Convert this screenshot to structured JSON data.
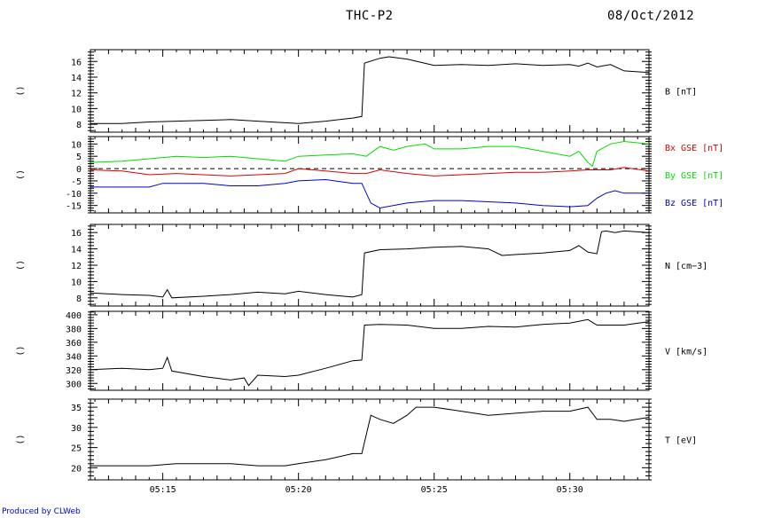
{
  "header": {
    "title": "THC-P2",
    "date": "08/Oct/2012"
  },
  "footer": {
    "credit": "Produced by CLWeb"
  },
  "colors": {
    "bx": "#dd0000",
    "by": "#00dd00",
    "bz": "#0000cc",
    "line": "#000000"
  },
  "chart_data": [
    {
      "type": "line",
      "id": "B",
      "left_label": "()",
      "ylim": [
        7,
        17.5
      ],
      "yticks": [
        8,
        10,
        12,
        14,
        16
      ],
      "xlim": [
        "05:12:20",
        "05:32:55"
      ],
      "series": [
        {
          "name": "B [nT]",
          "color": "#000000",
          "x": [
            "05:12:20",
            "05:13:30",
            "05:14:30",
            "05:15:30",
            "05:16:30",
            "05:17:30",
            "05:18:30",
            "05:19:30",
            "05:20:00",
            "05:21:00",
            "05:22:00",
            "05:22:20",
            "05:22:26",
            "05:23:00",
            "05:23:20",
            "05:24:00",
            "05:25:00",
            "05:26:00",
            "05:27:00",
            "05:28:00",
            "05:29:00",
            "05:30:00",
            "05:30:20",
            "05:30:40",
            "05:31:00",
            "05:31:30",
            "05:32:00",
            "05:32:55"
          ],
          "y": [
            8.1,
            8.1,
            8.3,
            8.4,
            8.5,
            8.6,
            8.4,
            8.2,
            8.1,
            8.4,
            8.8,
            9.0,
            15.8,
            16.4,
            16.6,
            16.3,
            15.5,
            15.6,
            15.5,
            15.7,
            15.5,
            15.6,
            15.4,
            15.8,
            15.3,
            15.6,
            14.8,
            14.6
          ]
        }
      ]
    },
    {
      "type": "line",
      "id": "Bxyz",
      "left_label": "()",
      "ylim": [
        -18,
        13
      ],
      "yticks": [
        10,
        5,
        0,
        -5,
        -10,
        -15
      ],
      "zero_line": true,
      "xlim": [
        "05:12:20",
        "05:32:55"
      ],
      "series": [
        {
          "name": "Bx GSE [nT]",
          "color": "#dd0000",
          "x": [
            "05:12:20",
            "05:13:30",
            "05:14:30",
            "05:15:30",
            "05:16:30",
            "05:17:30",
            "05:18:30",
            "05:19:30",
            "05:20:00",
            "05:21:00",
            "05:22:00",
            "05:22:30",
            "05:23:00",
            "05:24:00",
            "05:25:00",
            "05:26:00",
            "05:27:00",
            "05:28:00",
            "05:29:00",
            "05:30:00",
            "05:30:40",
            "05:31:00",
            "05:31:30",
            "05:32:00",
            "05:32:55"
          ],
          "y": [
            -0.5,
            -1,
            -2.5,
            -2,
            -2.5,
            -3,
            -2.5,
            -2,
            0,
            -1,
            -2,
            -2,
            -0.5,
            -2,
            -3,
            -2.5,
            -2,
            -1.5,
            -1.5,
            -1,
            -0.5,
            -0.5,
            -0.5,
            0.5,
            -1
          ]
        },
        {
          "name": "By GSE [nT]",
          "color": "#00dd00",
          "x": [
            "05:12:20",
            "05:13:30",
            "05:14:30",
            "05:15:00",
            "05:15:30",
            "05:16:30",
            "05:17:30",
            "05:18:30",
            "05:19:30",
            "05:20:00",
            "05:21:00",
            "05:22:00",
            "05:22:30",
            "05:23:00",
            "05:23:30",
            "05:24:00",
            "05:24:40",
            "05:25:00",
            "05:26:00",
            "05:27:00",
            "05:28:00",
            "05:29:00",
            "05:30:00",
            "05:30:20",
            "05:30:40",
            "05:30:50",
            "05:31:00",
            "05:31:30",
            "05:32:00",
            "05:32:55"
          ],
          "y": [
            2.5,
            3,
            4,
            4.5,
            5,
            4.5,
            5,
            4,
            3,
            5,
            5.5,
            6,
            5,
            9,
            7.5,
            9,
            10,
            8,
            8,
            9,
            9,
            7,
            5,
            7,
            2.5,
            1,
            7,
            10,
            11,
            10
          ]
        },
        {
          "name": "Bz GSE [nT]",
          "color": "#0000cc",
          "x": [
            "05:12:20",
            "05:13:30",
            "05:14:30",
            "05:15:00",
            "05:15:30",
            "05:16:30",
            "05:17:30",
            "05:18:30",
            "05:19:30",
            "05:20:00",
            "05:21:00",
            "05:22:00",
            "05:22:20",
            "05:22:40",
            "05:23:00",
            "05:24:00",
            "05:25:00",
            "05:26:00",
            "05:27:00",
            "05:28:00",
            "05:29:00",
            "05:30:00",
            "05:30:40",
            "05:31:00",
            "05:31:20",
            "05:31:40",
            "05:32:00",
            "05:32:55"
          ],
          "y": [
            -7.5,
            -7.5,
            -7.5,
            -6,
            -6,
            -6,
            -7,
            -7,
            -6,
            -5,
            -4.5,
            -6,
            -6,
            -14,
            -16,
            -14,
            -13,
            -13,
            -13.5,
            -14,
            -15,
            -15.5,
            -15,
            -12,
            -10,
            -9,
            -10,
            -10
          ]
        }
      ]
    },
    {
      "type": "line",
      "id": "N",
      "left_label": "()",
      "ylim": [
        7,
        17
      ],
      "yticks": [
        8,
        10,
        12,
        14,
        16
      ],
      "xlim": [
        "05:12:20",
        "05:32:55"
      ],
      "series": [
        {
          "name": "N [cm−3]",
          "color": "#000000",
          "x": [
            "05:12:20",
            "05:13:30",
            "05:14:30",
            "05:15:00",
            "05:15:10",
            "05:15:20",
            "05:16:30",
            "05:17:30",
            "05:18:30",
            "05:19:30",
            "05:20:00",
            "05:21:00",
            "05:22:00",
            "05:22:20",
            "05:22:26",
            "05:23:00",
            "05:24:00",
            "05:25:00",
            "05:26:00",
            "05:27:00",
            "05:27:30",
            "05:28:00",
            "05:29:00",
            "05:30:00",
            "05:30:20",
            "05:30:40",
            "05:31:00",
            "05:31:10",
            "05:31:20",
            "05:31:40",
            "05:32:00",
            "05:32:55"
          ],
          "y": [
            8.6,
            8.4,
            8.3,
            8.1,
            9.0,
            8.0,
            8.2,
            8.4,
            8.7,
            8.5,
            8.8,
            8.4,
            8.1,
            8.4,
            13.5,
            13.9,
            14.0,
            14.2,
            14.3,
            14.0,
            13.2,
            13.3,
            13.5,
            13.8,
            14.4,
            13.6,
            13.4,
            16.1,
            16.2,
            16.0,
            16.2,
            16.0
          ]
        }
      ]
    },
    {
      "type": "line",
      "id": "V",
      "left_label": "()",
      "ylim": [
        290,
        405
      ],
      "yticks": [
        300,
        320,
        340,
        360,
        380,
        400
      ],
      "xlim": [
        "05:12:20",
        "05:32:55"
      ],
      "series": [
        {
          "name": "V [km/s]",
          "color": "#000000",
          "x": [
            "05:12:20",
            "05:13:30",
            "05:14:30",
            "05:15:00",
            "05:15:10",
            "05:15:20",
            "05:16:30",
            "05:17:30",
            "05:18:00",
            "05:18:10",
            "05:18:30",
            "05:19:30",
            "05:20:00",
            "05:21:00",
            "05:22:00",
            "05:22:20",
            "05:22:26",
            "05:23:00",
            "05:24:00",
            "05:25:00",
            "05:26:00",
            "05:27:00",
            "05:28:00",
            "05:29:00",
            "05:30:00",
            "05:30:40",
            "05:31:00",
            "05:32:00",
            "05:32:55"
          ],
          "y": [
            320,
            322,
            320,
            322,
            338,
            318,
            310,
            305,
            308,
            297,
            312,
            310,
            312,
            322,
            333,
            334,
            385,
            386,
            385,
            380,
            380,
            383,
            382,
            386,
            388,
            393,
            385,
            385,
            390
          ]
        }
      ]
    },
    {
      "type": "line",
      "id": "T",
      "left_label": "()",
      "ylim": [
        17,
        37
      ],
      "yticks": [
        20,
        25,
        30,
        35
      ],
      "xlim": [
        "05:12:20",
        "05:32:55"
      ],
      "xtick_labels": [
        "05:15",
        "05:20",
        "05:25",
        "05:30"
      ],
      "series": [
        {
          "name": "T [eV]",
          "color": "#000000",
          "x": [
            "05:12:20",
            "05:13:30",
            "05:14:30",
            "05:15:30",
            "05:16:30",
            "05:17:30",
            "05:18:30",
            "05:19:30",
            "05:20:00",
            "05:21:00",
            "05:22:00",
            "05:22:20",
            "05:22:40",
            "05:23:00",
            "05:23:30",
            "05:24:00",
            "05:24:20",
            "05:25:00",
            "05:26:00",
            "05:27:00",
            "05:28:00",
            "05:29:00",
            "05:30:00",
            "05:30:40",
            "05:31:00",
            "05:31:30",
            "05:32:00",
            "05:32:55"
          ],
          "y": [
            20.5,
            20.5,
            20.5,
            21,
            21,
            21,
            20.5,
            20.5,
            21,
            22,
            23.5,
            23.5,
            33,
            32,
            31,
            33,
            35,
            35,
            34,
            33,
            33.5,
            34,
            34,
            35,
            32,
            32,
            31.5,
            32.5
          ]
        }
      ]
    }
  ]
}
